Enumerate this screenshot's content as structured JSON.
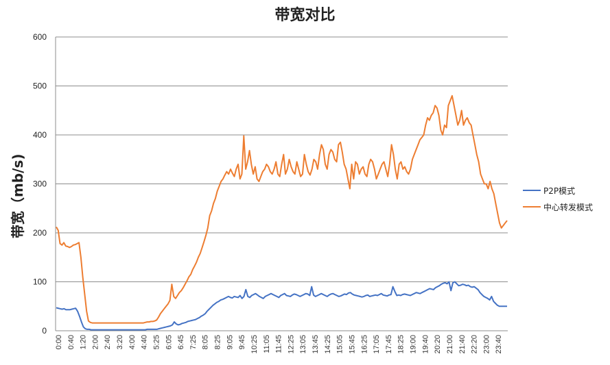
{
  "chart_data": {
    "type": "line",
    "title": "带宽对比",
    "xlabel": "",
    "ylabel": "带宽（mb/s)",
    "ylim": [
      0,
      600
    ],
    "yticks": [
      0,
      100,
      200,
      300,
      400,
      500,
      600
    ],
    "grid": true,
    "legend_position": "right",
    "categories": [
      "0:00",
      "0:40",
      "1:20",
      "2:00",
      "2:40",
      "3:20",
      "4:00",
      "4:40",
      "5:25",
      "6:05",
      "6:45",
      "7:25",
      "8:05",
      "8:25",
      "9:05",
      "9:45",
      "10:25",
      "11:05",
      "11:45",
      "12:25",
      "13:05",
      "13:45",
      "14:25",
      "15:05",
      "15:45",
      "16:25",
      "17:05",
      "17:45",
      "18:25",
      "19:00",
      "19:40",
      "20:20",
      "21:00",
      "21:40",
      "22:20",
      "23:00",
      "23:40"
    ],
    "series": [
      {
        "name": "P2P模式",
        "color": "#4472C4",
        "values": [
          47,
          46,
          45,
          44,
          45,
          43,
          43,
          43,
          44,
          45,
          46,
          40,
          30,
          18,
          8,
          4,
          3,
          3,
          2,
          2,
          2,
          2,
          2,
          2,
          2,
          2,
          2,
          2,
          2,
          2,
          2,
          2,
          2,
          2,
          2,
          2,
          2,
          2,
          2,
          2,
          2,
          2,
          2,
          2,
          2,
          2,
          2,
          3,
          3,
          3,
          3,
          3,
          3,
          4,
          5,
          6,
          7,
          8,
          9,
          10,
          12,
          18,
          14,
          12,
          13,
          15,
          16,
          17,
          19,
          20,
          21,
          22,
          23,
          25,
          27,
          30,
          32,
          35,
          40,
          44,
          48,
          52,
          55,
          58,
          60,
          63,
          64,
          66,
          68,
          70,
          68,
          67,
          70,
          69,
          68,
          72,
          66,
          70,
          84,
          70,
          68,
          72,
          74,
          76,
          73,
          70,
          68,
          66,
          70,
          72,
          74,
          76,
          74,
          72,
          70,
          68,
          72,
          74,
          76,
          72,
          71,
          70,
          73,
          75,
          74,
          72,
          70,
          72,
          74,
          76,
          75,
          72,
          90,
          73,
          70,
          72,
          74,
          76,
          74,
          72,
          70,
          73,
          75,
          76,
          74,
          72,
          70,
          71,
          73,
          75,
          74,
          77,
          78,
          75,
          73,
          72,
          71,
          70,
          69,
          70,
          72,
          73,
          70,
          71,
          72,
          73,
          72,
          74,
          76,
          73,
          72,
          71,
          73,
          74,
          90,
          80,
          72,
          73,
          72,
          74,
          75,
          74,
          73,
          72,
          74,
          76,
          78,
          77,
          76,
          78,
          80,
          82,
          84,
          86,
          85,
          84,
          88,
          90,
          92,
          95,
          97,
          98,
          96,
          100,
          82,
          98,
          100,
          96,
          92,
          93,
          95,
          94,
          92,
          93,
          90,
          89,
          90,
          87,
          84,
          78,
          74,
          70,
          68,
          66,
          63,
          70,
          60,
          56,
          52,
          50,
          50,
          50,
          50,
          50
        ]
      },
      {
        "name": "中心转发模式",
        "color": "#ED7D31",
        "values": [
          212,
          205,
          178,
          175,
          180,
          173,
          172,
          170,
          172,
          175,
          176,
          178,
          180,
          150,
          110,
          75,
          40,
          20,
          17,
          16,
          16,
          16,
          16,
          16,
          16,
          16,
          16,
          16,
          16,
          16,
          16,
          16,
          16,
          16,
          16,
          16,
          16,
          16,
          16,
          16,
          16,
          16,
          16,
          16,
          16,
          16,
          16,
          17,
          18,
          18,
          19,
          19,
          20,
          22,
          28,
          35,
          40,
          45,
          50,
          55,
          62,
          95,
          70,
          66,
          72,
          78,
          82,
          88,
          95,
          102,
          110,
          115,
          125,
          132,
          140,
          150,
          158,
          170,
          182,
          195,
          210,
          235,
          245,
          260,
          270,
          285,
          295,
          305,
          310,
          318,
          325,
          320,
          330,
          322,
          315,
          330,
          340,
          310,
          320,
          398,
          330,
          345,
          368,
          340,
          320,
          335,
          310,
          305,
          315,
          325,
          330,
          340,
          335,
          325,
          320,
          330,
          345,
          320,
          315,
          340,
          360,
          320,
          330,
          350,
          335,
          325,
          320,
          345,
          330,
          315,
          320,
          360,
          340,
          325,
          318,
          330,
          350,
          345,
          330,
          360,
          380,
          370,
          340,
          330,
          360,
          370,
          365,
          350,
          345,
          380,
          385,
          365,
          340,
          330,
          310,
          290,
          340,
          310,
          345,
          340,
          320,
          330,
          335,
          320,
          315,
          340,
          350,
          345,
          330,
          310,
          320,
          330,
          340,
          345,
          330,
          315,
          340,
          380,
          360,
          330,
          310,
          340,
          345,
          330,
          335,
          325,
          320,
          330,
          350,
          360,
          370,
          380,
          390,
          395,
          400,
          420,
          435,
          430,
          440,
          445,
          460,
          455,
          440,
          410,
          400,
          420,
          415,
          460,
          470,
          480,
          460,
          440,
          420,
          430,
          450,
          420,
          430,
          435,
          425,
          420,
          400,
          380,
          360,
          345,
          320,
          310,
          300,
          300,
          290,
          305,
          290,
          280,
          260,
          240,
          220,
          210,
          215,
          220,
          225
        ]
      }
    ]
  },
  "legend": {
    "items": [
      {
        "label": "P2P模式",
        "color": "#4472C4"
      },
      {
        "label": "中心转发模式",
        "color": "#ED7D31"
      }
    ]
  }
}
